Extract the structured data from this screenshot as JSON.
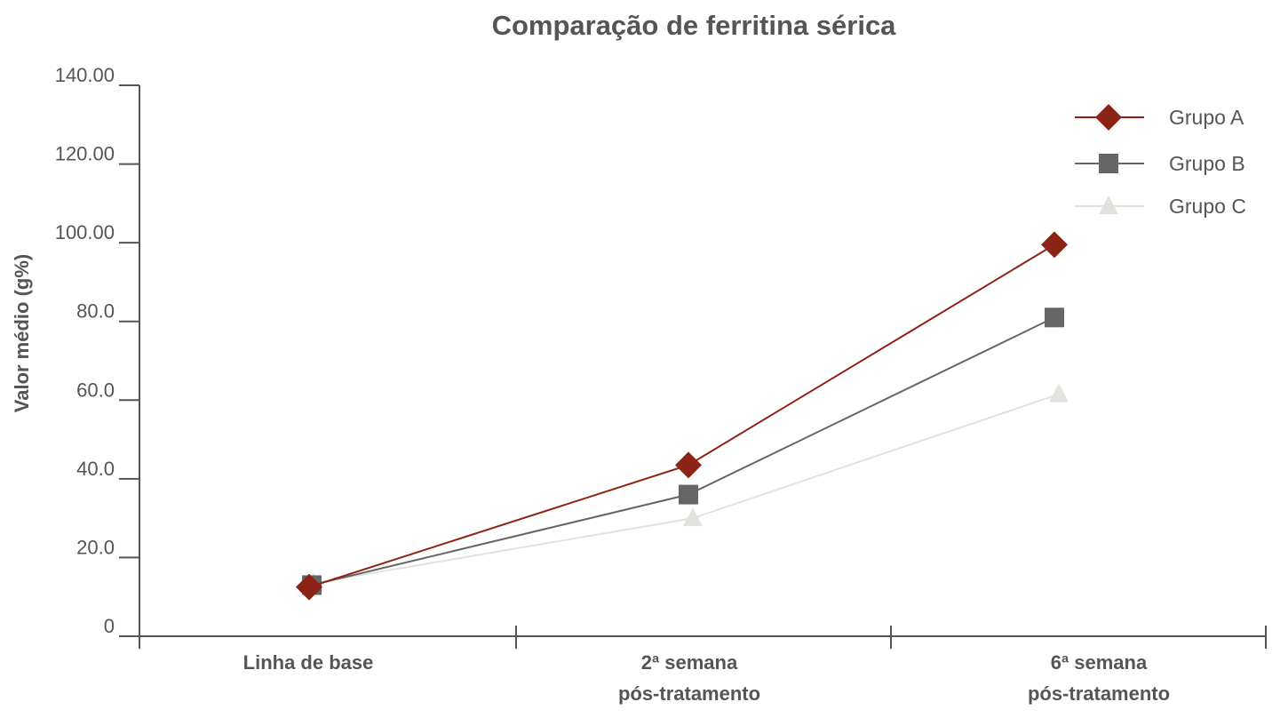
{
  "chart_data": {
    "type": "line",
    "title": "Comparação de ferritina sérica",
    "ylabel": "Valor médio (g%)",
    "xlabel": "",
    "ylim": [
      0,
      140
    ],
    "y_ticks": [
      {
        "value": 0,
        "label": "0"
      },
      {
        "value": 20,
        "label": "20.0"
      },
      {
        "value": 40,
        "label": "40.0"
      },
      {
        "value": 60,
        "label": "60.0"
      },
      {
        "value": 80,
        "label": "80.0"
      },
      {
        "value": 100,
        "label": "100.00"
      },
      {
        "value": 120,
        "label": "120.00"
      },
      {
        "value": 140,
        "label": "140.00"
      }
    ],
    "categories": [
      [
        "Linha de base"
      ],
      [
        "2ª semana",
        "pós-tratamento"
      ],
      [
        "6ª semana",
        "pós-tratamento"
      ]
    ],
    "series": [
      {
        "name": "Grupo A",
        "marker": "diamond",
        "color": "#8b2317",
        "values": [
          12.5,
          43.5,
          99.5
        ]
      },
      {
        "name": "Grupo B",
        "marker": "square",
        "color": "#666666",
        "values": [
          13,
          36,
          81
        ]
      },
      {
        "name": "Grupo C",
        "marker": "triangle",
        "color": "#e4e2de",
        "values": [
          13.5,
          30,
          61.5
        ]
      }
    ],
    "legend_position": "top-right",
    "grid": false
  }
}
